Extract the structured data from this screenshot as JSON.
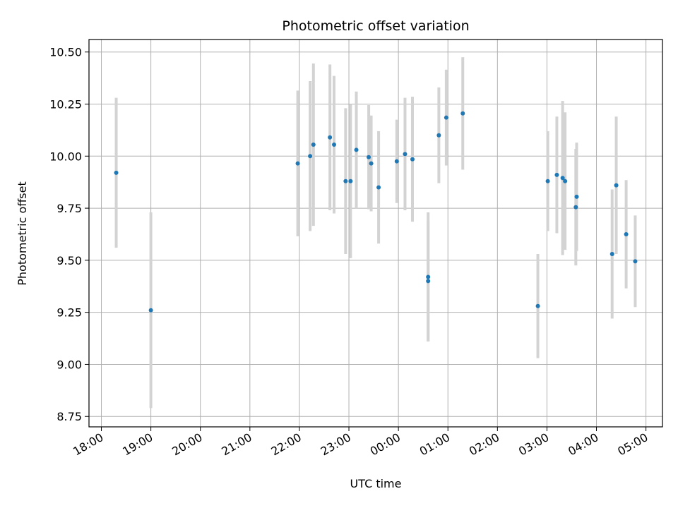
{
  "chart_data": {
    "type": "scatter",
    "title": "Photometric offset variation",
    "xlabel": "UTC time",
    "ylabel": "Photometric offset",
    "x_axis_kind": "time",
    "x_ticks": [
      "18:00",
      "19:00",
      "20:00",
      "21:00",
      "22:00",
      "23:00",
      "00:00",
      "01:00",
      "02:00",
      "03:00",
      "04:00",
      "05:00"
    ],
    "y_ticks": [
      "8.75",
      "9.00",
      "9.25",
      "9.50",
      "9.75",
      "10.00",
      "10.25",
      "10.50"
    ],
    "xlim": [
      "17:45",
      "05:20"
    ],
    "ylim": [
      8.7,
      10.56
    ],
    "grid": true,
    "marker_color": "#1f77b4",
    "errorbar_color": "#d3d3d3",
    "points": [
      {
        "x": "18:18",
        "y": 9.92,
        "err": 0.36
      },
      {
        "x": "19:00",
        "y": 9.26,
        "err": 0.47
      },
      {
        "x": "21:58",
        "y": 9.965,
        "err": 0.35
      },
      {
        "x": "22:13",
        "y": 10.0,
        "err": 0.36
      },
      {
        "x": "22:17",
        "y": 10.055,
        "err": 0.39
      },
      {
        "x": "22:37",
        "y": 10.09,
        "err": 0.35
      },
      {
        "x": "22:42",
        "y": 10.055,
        "err": 0.33
      },
      {
        "x": "22:56",
        "y": 9.88,
        "err": 0.35
      },
      {
        "x": "23:02",
        "y": 9.88,
        "err": 0.37
      },
      {
        "x": "23:09",
        "y": 10.03,
        "err": 0.28
      },
      {
        "x": "23:24",
        "y": 9.995,
        "err": 0.25
      },
      {
        "x": "23:27",
        "y": 9.965,
        "err": 0.23
      },
      {
        "x": "23:36",
        "y": 9.85,
        "err": 0.27
      },
      {
        "x": "23:58",
        "y": 9.975,
        "err": 0.2
      },
      {
        "x": "00:08",
        "y": 10.01,
        "err": 0.27
      },
      {
        "x": "00:17",
        "y": 9.985,
        "err": 0.3
      },
      {
        "x": "00:36",
        "y": 9.42,
        "err": 0.31
      },
      {
        "x": "00:36",
        "y": 9.4,
        "err": 0.29
      },
      {
        "x": "00:49",
        "y": 10.1,
        "err": 0.23
      },
      {
        "x": "00:58",
        "y": 10.185,
        "err": 0.23
      },
      {
        "x": "01:18",
        "y": 10.205,
        "err": 0.27
      },
      {
        "x": "02:49",
        "y": 9.28,
        "err": 0.25
      },
      {
        "x": "03:01",
        "y": 9.88,
        "err": 0.24
      },
      {
        "x": "03:12",
        "y": 9.91,
        "err": 0.28
      },
      {
        "x": "03:19",
        "y": 9.895,
        "err": 0.37
      },
      {
        "x": "03:22",
        "y": 9.88,
        "err": 0.33
      },
      {
        "x": "03:35",
        "y": 9.755,
        "err": 0.28
      },
      {
        "x": "03:36",
        "y": 9.805,
        "err": 0.26
      },
      {
        "x": "04:19",
        "y": 9.53,
        "err": 0.31
      },
      {
        "x": "04:24",
        "y": 9.86,
        "err": 0.33
      },
      {
        "x": "04:36",
        "y": 9.625,
        "err": 0.26
      },
      {
        "x": "04:47",
        "y": 9.495,
        "err": 0.22
      }
    ]
  }
}
